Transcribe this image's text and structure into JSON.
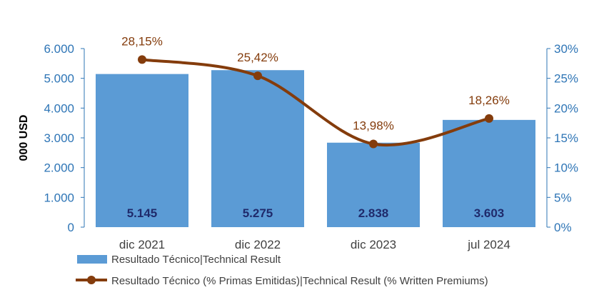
{
  "chart_data": {
    "type": "bar",
    "categories": [
      "dic 2021",
      "dic 2022",
      "dic 2023",
      "jul 2024"
    ],
    "series": [
      {
        "name": "Resultado Técnico|Technical Result",
        "type": "bar",
        "axis": "left",
        "values": [
          5145,
          5275,
          2838,
          3603
        ],
        "labels": [
          "5.145",
          "5.275",
          "2.838",
          "3.603"
        ],
        "color": "#5b9bd5"
      },
      {
        "name": "Resultado Técnico (% Primas Emitidas)|Technical Result (% Written Premiums)",
        "type": "line",
        "axis": "right",
        "values": [
          28.15,
          25.42,
          13.98,
          18.26
        ],
        "labels": [
          "28,15%",
          "25,42%",
          "13,98%",
          "18,26%"
        ],
        "color": "#843c0c"
      }
    ],
    "ylabel": "000 USD",
    "ylim": [
      0,
      6000
    ],
    "y_ticks": [
      "0",
      "1.000",
      "2.000",
      "3.000",
      "4.000",
      "5.000",
      "6.000"
    ],
    "y2lim": [
      0,
      30
    ],
    "y2_ticks": [
      "0%",
      "5%",
      "10%",
      "15%",
      "20%",
      "25%",
      "30%"
    ],
    "legend_position": "bottom-left",
    "grid": false
  },
  "colors": {
    "axis": "#2e75b6",
    "bar": "#5b9bd5",
    "line": "#843c0c",
    "bar_label": "#1f2a6b"
  }
}
